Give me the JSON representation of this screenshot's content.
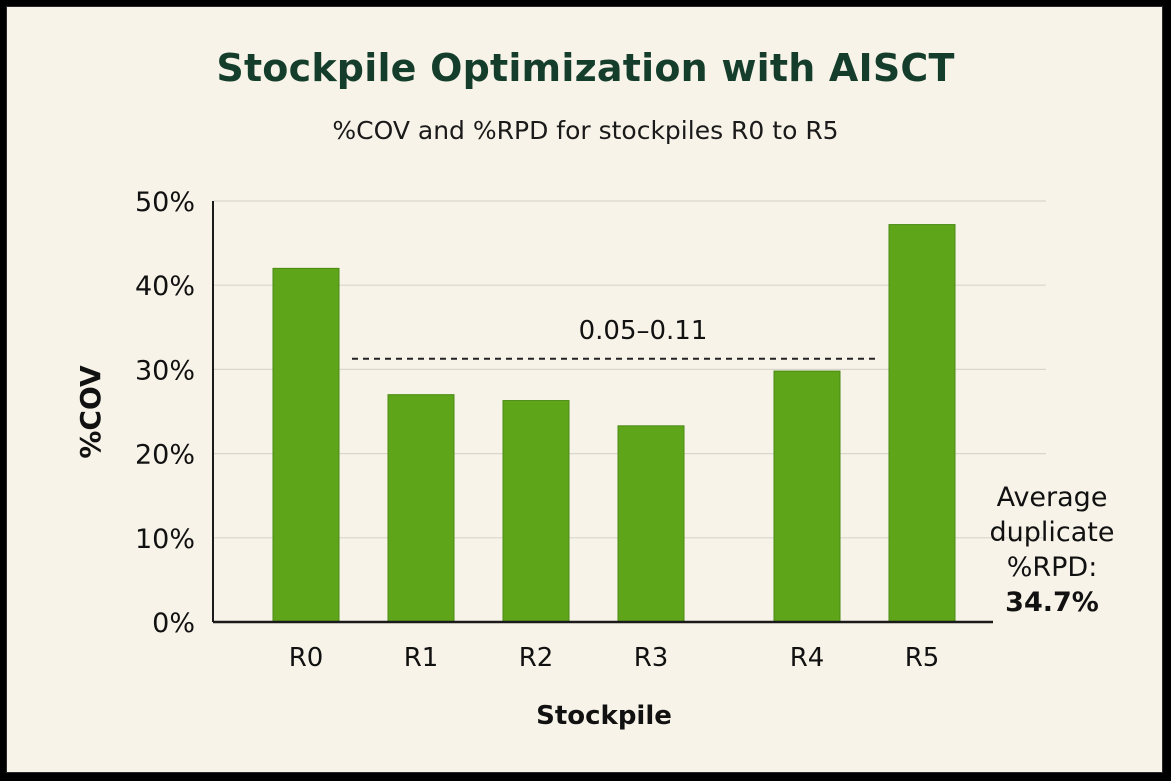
{
  "chart_data": {
    "type": "bar",
    "title": "Stockpile Optimization with AISCT",
    "subtitle": "%COV and %RPD for stockpiles R0 to R5",
    "xlabel": "Stockpile",
    "ylabel": "%COV",
    "categories": [
      "R0",
      "R1",
      "R2",
      "R3",
      "R4",
      "R5"
    ],
    "values": [
      42,
      27,
      26.3,
      23.3,
      29.8,
      47.2
    ],
    "ylim": [
      0,
      50
    ],
    "yticks": [
      "0%",
      "10%",
      "20%",
      "30%",
      "40%",
      "50%"
    ],
    "grid": true,
    "bar_color": "#5ea51a",
    "reference_line": {
      "label": "0.05–0.11",
      "y": 31.5,
      "style": "dashed"
    },
    "annotation": {
      "lines": [
        "Average",
        "duplicate",
        "%RPD:"
      ],
      "value": "34.7%"
    }
  },
  "colors": {
    "background": "#f7f3e8",
    "title": "#153d2b",
    "bar": "#5ea51a",
    "grid": "#d9d6cc"
  }
}
